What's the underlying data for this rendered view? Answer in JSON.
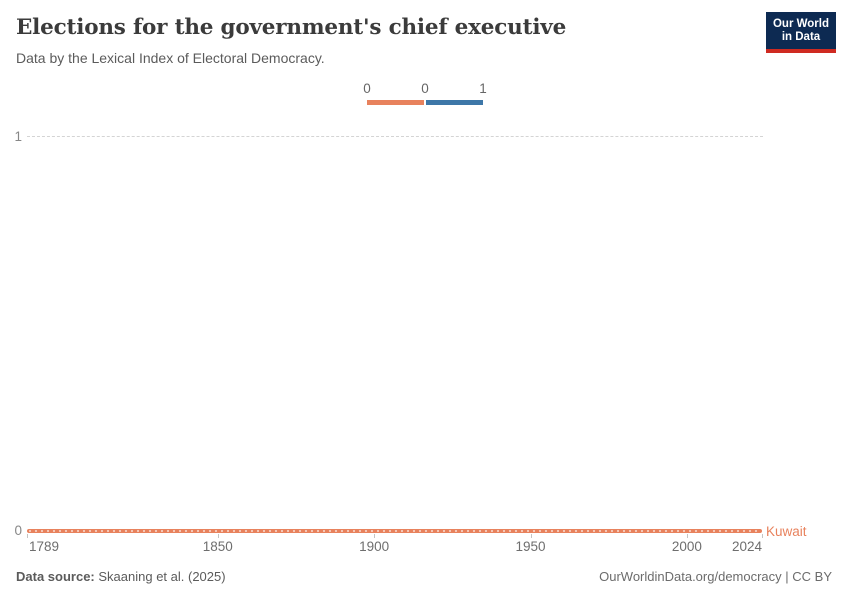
{
  "header": {
    "title": "Elections for the government's chief executive",
    "subtitle": "Data by the Lexical Index of Electoral Democracy.",
    "logo": {
      "line1": "Our World",
      "line2": "in Data"
    }
  },
  "legend": {
    "tick_labels": [
      "0",
      "0",
      "1"
    ],
    "segments": [
      {
        "label": "0",
        "color": "#e8825d"
      },
      {
        "label": "1",
        "color": "#3d77a8"
      }
    ]
  },
  "y_axis": {
    "top_label": "1",
    "bottom_label": "0"
  },
  "series_label": "Kuwait",
  "footer": {
    "source_label": "Data source:",
    "source_value": "Skaaning et al. (2025)",
    "right_text": "OurWorldinData.org/democracy | CC BY"
  },
  "colors": {
    "kuwait_line": "#e8825d",
    "legend_blue": "#3d77a8",
    "logo_navy": "#0d2a52",
    "logo_red": "#cf2a21",
    "gridline": "#d4d4d4"
  },
  "chart_data": {
    "type": "line",
    "title": "Elections for the government's chief executive",
    "subtitle": "Data by the Lexical Index of Electoral Democracy.",
    "series": [
      {
        "name": "Kuwait",
        "color": "#e8825d",
        "x": [
          1789,
          2024
        ],
        "values": [
          0,
          0
        ]
      }
    ],
    "x_ticks": [
      1789,
      1850,
      1900,
      1950,
      2000,
      2024
    ],
    "y_ticks": [
      0,
      1
    ],
    "xlim": [
      1789,
      2024
    ],
    "ylim": [
      0,
      1
    ],
    "grid": "dashed-horizontal",
    "legend_position": "top-center",
    "legend_scale": {
      "labels": [
        "0",
        "0",
        "1"
      ],
      "colors": [
        "#e8825d",
        "#3d77a8"
      ]
    }
  }
}
